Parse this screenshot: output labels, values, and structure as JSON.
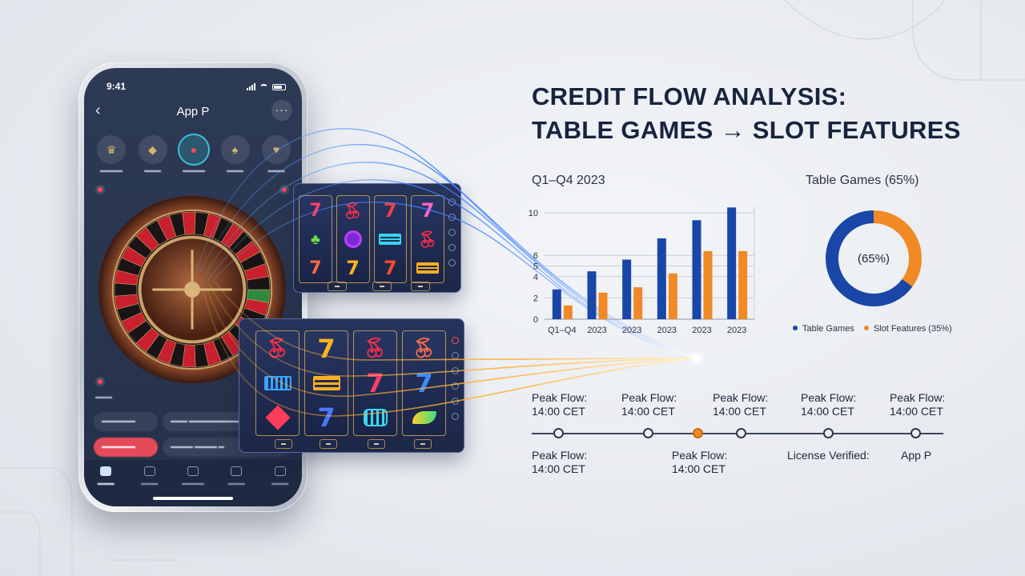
{
  "phone": {
    "status_time": "9:41",
    "app_title": "App P",
    "back_icon": "chevron-left-icon",
    "more_icon": "ellipsis-icon"
  },
  "headline": {
    "line1": "CREDIT FLOW ANALYSIS:",
    "line2": "TABLE GAMES → SLOT FEATURES"
  },
  "bar_chart": {
    "subtitle": "Q1–Q4 2023",
    "y_ticks": [
      "0",
      "2",
      "4",
      "5",
      "6",
      "10"
    ],
    "x_labels": [
      "Q1–Q4",
      "2023",
      "2023",
      "2023",
      "2023",
      "2023"
    ]
  },
  "donut": {
    "title": "Table Games (65%)",
    "center_label": "(65%)",
    "legend": [
      {
        "label": "Table Games",
        "color": "#1a46a8"
      },
      {
        "label": "Slot Features (35%)",
        "color": "#f08a24"
      }
    ]
  },
  "timeline": {
    "top_labels": [
      {
        "l1": "Peak Flow:",
        "l2": "14:00 CET"
      },
      {
        "l1": "Peak Flow:",
        "l2": "14:00 CET"
      },
      {
        "l1": "Peak Flow:",
        "l2": "14:00 CET"
      },
      {
        "l1": "Peak Flow:",
        "l2": "14:00 CET"
      },
      {
        "l1": "Peak Flow:",
        "l2": "14:00 CET"
      }
    ],
    "bottom_labels": [
      {
        "l1": "Peak Flow:",
        "l2": "14:00 CET"
      },
      {
        "l1": "Peak Flow:",
        "l2": "14:00 CET"
      },
      {
        "l1": "License Verified:",
        "l2": ""
      },
      {
        "l1": "App P",
        "l2": ""
      }
    ]
  },
  "colors": {
    "blue": "#1a46a8",
    "orange": "#f08a24",
    "navy": "#18243f"
  },
  "chart_data": [
    {
      "type": "bar",
      "title": "Q1–Q4 2023",
      "categories": [
        "Q1–Q4",
        "2023",
        "2023",
        "2023",
        "2023",
        "2023"
      ],
      "series": [
        {
          "values": [
            2.8,
            4.5,
            5.6,
            7.6,
            9.3,
            10.5
          ]
        },
        {
          "values": [
            1.3,
            2.5,
            3.0,
            4.3,
            6.4,
            6.4
          ]
        }
      ],
      "ylim": [
        0,
        10.6
      ],
      "y_ticks": [
        0,
        2,
        4,
        5,
        6,
        10
      ],
      "grid": true
    },
    {
      "type": "pie",
      "title": "Table Games (65%)",
      "slices": [
        {
          "label": "Table Games",
          "value": 65
        },
        {
          "label": "Slot Features",
          "value": 35
        }
      ]
    }
  ]
}
